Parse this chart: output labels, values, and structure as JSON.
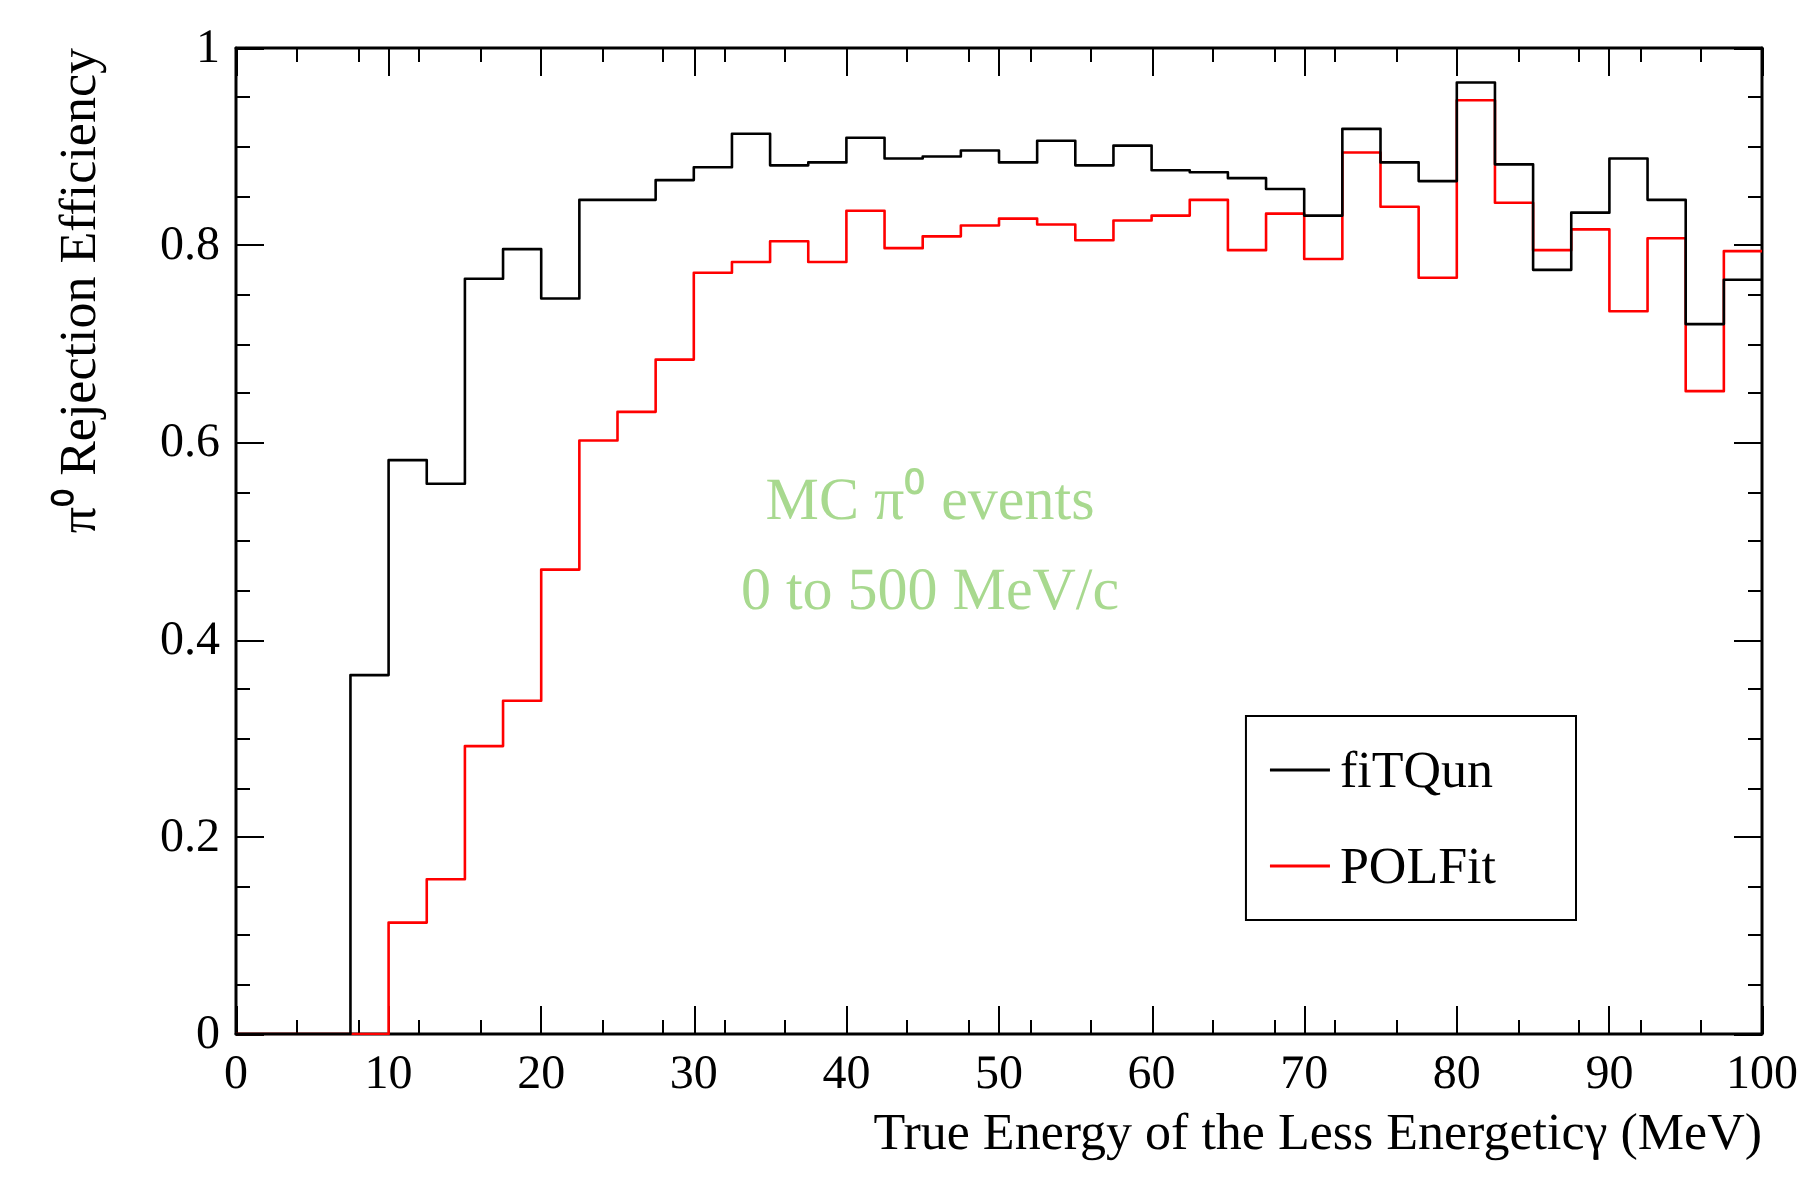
{
  "chart_data": {
    "type": "histogram",
    "xlabel": "True Energy of the Less Energeticγ (MeV)",
    "ylabel": "π⁰ Rejection Efficiency",
    "bins": [
      0,
      2.5,
      5,
      7.5,
      10,
      12.5,
      15,
      17.5,
      20,
      22.5,
      25,
      27.5,
      30,
      32.5,
      35,
      37.5,
      40,
      42.5,
      45,
      47.5,
      50,
      52.5,
      55,
      57.5,
      60,
      62.5,
      65,
      67.5,
      70,
      72.5,
      75,
      77.5,
      80,
      82.5,
      85,
      87.5,
      90,
      92.5,
      95,
      97.5,
      100
    ],
    "series": [
      {
        "name": "fiTQun",
        "color": "#000000",
        "values": [
          0,
          0,
          0,
          0.364,
          0.582,
          0.558,
          0.766,
          0.796,
          0.746,
          0.846,
          0.846,
          0.866,
          0.879,
          0.913,
          0.881,
          0.884,
          0.909,
          0.888,
          0.89,
          0.896,
          0.884,
          0.906,
          0.881,
          0.901,
          0.876,
          0.874,
          0.868,
          0.857,
          0.83,
          0.918,
          0.884,
          0.865,
          0.965,
          0.882,
          0.775,
          0.833,
          0.888,
          0.846,
          0.72,
          0.765
        ]
      },
      {
        "name": "POLFit",
        "color": "#ff0000",
        "values": [
          0,
          0,
          0,
          0,
          0.113,
          0.157,
          0.292,
          0.338,
          0.471,
          0.602,
          0.631,
          0.684,
          0.772,
          0.783,
          0.804,
          0.783,
          0.835,
          0.797,
          0.809,
          0.82,
          0.827,
          0.821,
          0.805,
          0.825,
          0.83,
          0.846,
          0.795,
          0.832,
          0.786,
          0.894,
          0.839,
          0.767,
          0.947,
          0.843,
          0.795,
          0.816,
          0.733,
          0.807,
          0.652,
          0.794
        ]
      }
    ],
    "xlim": [
      0,
      100
    ],
    "xticks": [
      0,
      10,
      20,
      30,
      40,
      50,
      60,
      70,
      80,
      90,
      100
    ],
    "ylim": [
      0,
      1
    ],
    "yticks": [
      0,
      0.2,
      0.4,
      0.6,
      0.8,
      1
    ],
    "legend": "bottom right",
    "annotations": [
      "MC π⁰ events",
      "0 to 500 MeV/c"
    ]
  }
}
